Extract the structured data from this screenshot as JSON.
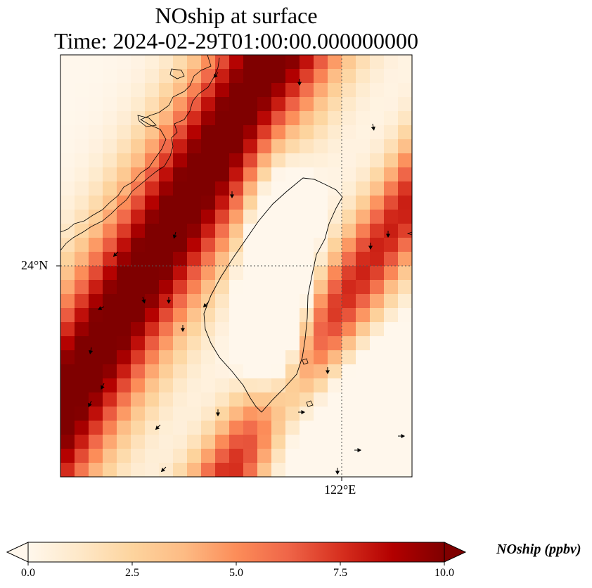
{
  "chart_data": {
    "type": "heatmap",
    "title_line1": "NOship at surface",
    "title_line2": "Time: 2024-02-29T01:00:00.000000000",
    "field": "NOship",
    "units": "ppbv",
    "xtick_labels": [
      "122°E"
    ],
    "ytick_labels": [
      "24°N"
    ],
    "grid": "dotted lines at 24°N and 122°E",
    "colormap": "OrRd",
    "colorbar": {
      "label": "NOship (ppbv)",
      "range": [
        0.0,
        10.0
      ],
      "ticks": [
        "0.0",
        "2.5",
        "5.0",
        "7.5",
        "10.0"
      ],
      "extend": "both",
      "placement": "bottom"
    },
    "colors": {
      "low": "#fff7ec",
      "mid": "#fc8d59",
      "high": "#7f0000"
    },
    "features": [
      "coastlines",
      "wind-arrows"
    ]
  }
}
